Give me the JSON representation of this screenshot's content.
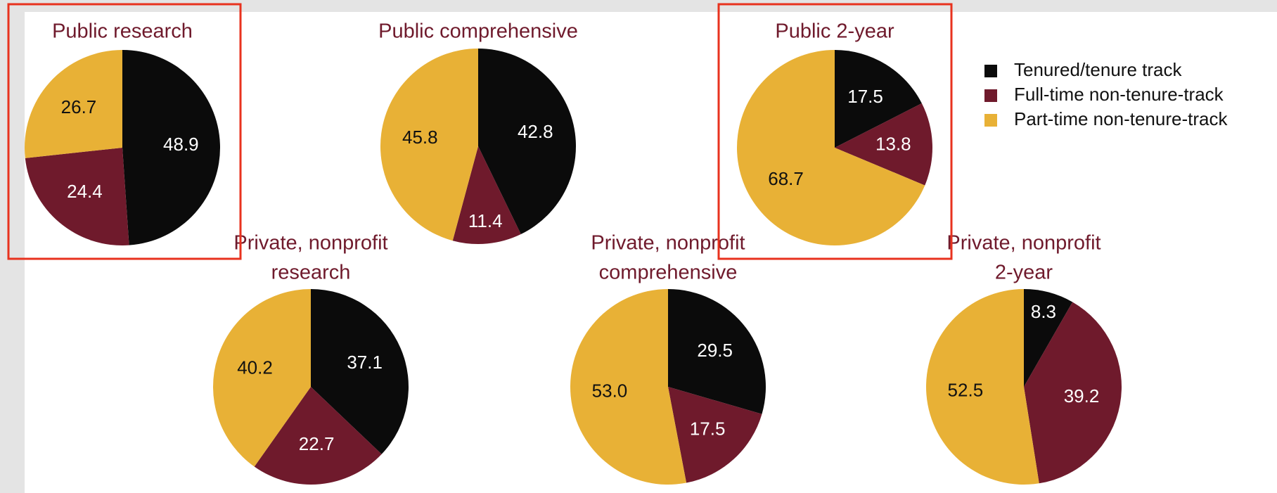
{
  "legend": {
    "labels": [
      "Tenured/tenure track",
      "Full-time non-tenure-track",
      "Part-time non-tenure-track"
    ],
    "colors": [
      "#0b0b0b",
      "#6f1a2c",
      "#e8b136"
    ]
  },
  "chart_data": [
    {
      "type": "pie",
      "title": [
        "Public research"
      ],
      "values": [
        48.9,
        24.4,
        26.7
      ]
    },
    {
      "type": "pie",
      "title": [
        "Public comprehensive"
      ],
      "values": [
        42.8,
        11.4,
        45.8
      ]
    },
    {
      "type": "pie",
      "title": [
        "Public 2-year"
      ],
      "values": [
        17.5,
        13.8,
        68.7
      ]
    },
    {
      "type": "pie",
      "title": [
        "Private, nonprofit",
        "research"
      ],
      "values": [
        37.1,
        22.7,
        40.2
      ]
    },
    {
      "type": "pie",
      "title": [
        "Private, nonprofit",
        "comprehensive"
      ],
      "values": [
        29.5,
        17.5,
        53
      ],
      "value_labels": [
        "29.5",
        "17.5",
        "53.0"
      ]
    },
    {
      "type": "pie",
      "title": [
        "Private, nonprofit",
        "2-year"
      ],
      "values": [
        8.3,
        39.2,
        52.5
      ]
    }
  ]
}
